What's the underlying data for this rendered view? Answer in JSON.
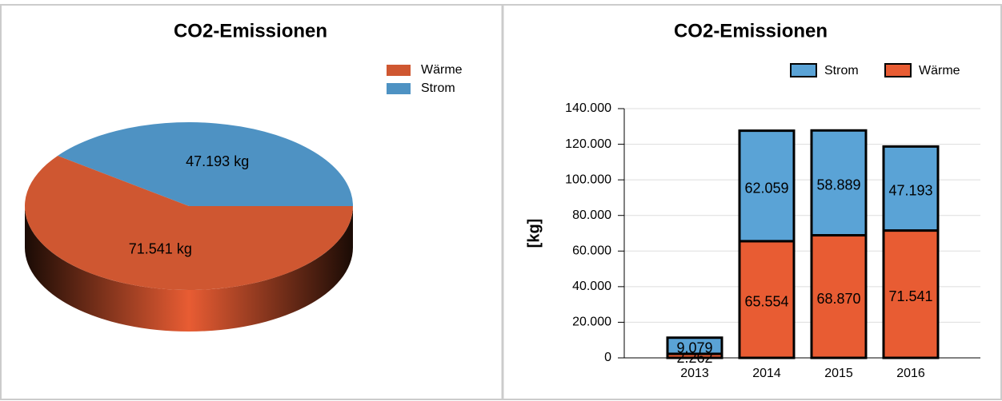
{
  "chart_data": [
    {
      "type": "pie",
      "title": "CO2-Emissionen",
      "categories": [
        "Wärme",
        "Strom"
      ],
      "values": [
        71541,
        47193
      ],
      "value_labels": [
        "71.541 kg",
        "47.193 kg"
      ],
      "colors": [
        "#cf5731",
        "#4e92c3"
      ],
      "legend": "top-right"
    },
    {
      "type": "bar",
      "stacked": true,
      "title": "CO2-Emissionen",
      "ylabel": "[kg]",
      "categories": [
        "2013",
        "2014",
        "2015",
        "2016"
      ],
      "series": [
        {
          "name": "Wärme",
          "color": "#e85c33",
          "values": [
            2262,
            65554,
            68870,
            71541
          ],
          "value_labels": [
            "2.262",
            "65.554",
            "68.870",
            "71.541"
          ]
        },
        {
          "name": "Strom",
          "color": "#5aa3d6",
          "values": [
            9079,
            62059,
            58889,
            47193
          ],
          "value_labels": [
            "9.079",
            "62.059",
            "58.889",
            "47.193"
          ]
        }
      ],
      "ylim": [
        0,
        140000
      ],
      "yticks": [
        0,
        {
          "value": 20000,
          "label": "20.000"
        },
        {
          "value": 40000,
          "label": "40.000"
        },
        {
          "value": 60000,
          "label": "60.000"
        },
        {
          "value": 80000,
          "label": "80.000"
        },
        {
          "value": 100000,
          "label": "100.000"
        },
        {
          "value": 120000,
          "label": "120.000"
        },
        {
          "value": 140000,
          "label": "140.000"
        }
      ],
      "grid": true,
      "legend": "top-right"
    }
  ]
}
